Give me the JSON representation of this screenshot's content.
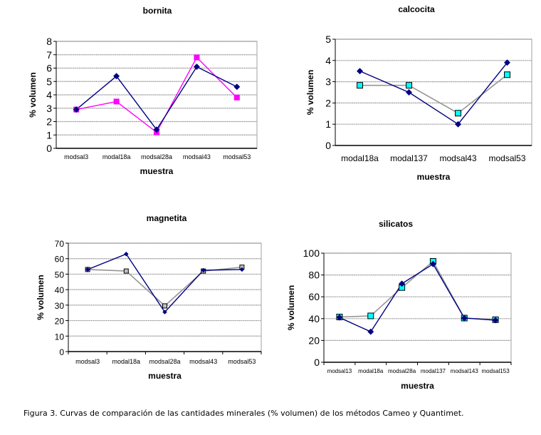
{
  "caption": "Figura 3. Curvas de comparación de las cantidades minerales (% volumen) de los métodos Cameo y Quantimet.",
  "chart_data": [
    {
      "id": "bornita",
      "type": "line",
      "title": "bornita",
      "xlabel": "muestra",
      "ylabel": "% volumen",
      "categories": [
        "modsal3",
        "modal18a",
        "modsal28a",
        "modsal43",
        "modsal53"
      ],
      "ylim": [
        0,
        8
      ],
      "yticks": [
        0,
        1,
        2,
        3,
        4,
        5,
        6,
        7,
        8
      ],
      "grid": true,
      "legend": "none",
      "series": [
        {
          "name": "series-1",
          "color": "#000080",
          "marker": "diamond",
          "values": [
            2.9,
            5.4,
            1.4,
            6.1,
            4.6
          ]
        },
        {
          "name": "series-2",
          "color": "#FF00FF",
          "marker": "square",
          "marker_fill": "#FF00FF",
          "values": [
            2.9,
            3.5,
            1.2,
            6.8,
            3.8
          ]
        }
      ]
    },
    {
      "id": "calcocita",
      "type": "line",
      "title": "calcocita",
      "xlabel": "muestra",
      "ylabel": "% volumen",
      "categories": [
        "modal18a",
        "modal137",
        "modsal43",
        "modsal53"
      ],
      "ylim": [
        0,
        5
      ],
      "yticks": [
        0,
        1,
        2,
        3,
        4,
        5
      ],
      "grid": true,
      "legend": "none",
      "series": [
        {
          "name": "series-1",
          "color": "#000080",
          "marker": "diamond",
          "values": [
            3.5,
            2.5,
            1.0,
            3.9
          ]
        },
        {
          "name": "series-2",
          "color": "#969696",
          "marker": "square",
          "marker_fill": "#00FFFF",
          "values": [
            2.83,
            2.83,
            1.52,
            3.33
          ]
        }
      ]
    },
    {
      "id": "magnetita",
      "type": "line",
      "title": "magnetita",
      "xlabel": "muestra",
      "ylabel": "% volumen",
      "categories": [
        "modsal3",
        "modal18a",
        "modsal28a",
        "modsal43",
        "modsal53"
      ],
      "ylim": [
        0,
        70
      ],
      "yticks": [
        0,
        10,
        20,
        30,
        40,
        50,
        60,
        70
      ],
      "grid": true,
      "legend": "none",
      "series": [
        {
          "name": "series-1",
          "color": "#000080",
          "marker": "diamond-small",
          "values": [
            53,
            63,
            25.5,
            52.5,
            53
          ]
        },
        {
          "name": "series-2",
          "color": "#969696",
          "marker": "square",
          "marker_fill": "#C0C0C0",
          "values": [
            53,
            52,
            29.5,
            52,
            54.5
          ]
        }
      ]
    },
    {
      "id": "silicatos",
      "type": "line",
      "title": "silicatos",
      "xlabel": "muestra",
      "ylabel": "% volumen",
      "categories": [
        "modsal13",
        "modal18a",
        "modsal28a",
        "modal137",
        "modsal143",
        "modsal153"
      ],
      "ylim": [
        0,
        100
      ],
      "yticks": [
        0,
        20,
        40,
        60,
        80,
        100
      ],
      "grid": true,
      "legend": "none",
      "series": [
        {
          "name": "series-1",
          "color": "#000080",
          "marker": "diamond",
          "values": [
            41,
            28,
            72,
            90,
            40.5,
            38.5
          ]
        },
        {
          "name": "series-2",
          "color": "#969696",
          "marker": "square",
          "marker_fill": "#00FFFF",
          "values": [
            41.5,
            42.5,
            68.5,
            92.5,
            40.5,
            39
          ]
        }
      ]
    }
  ]
}
